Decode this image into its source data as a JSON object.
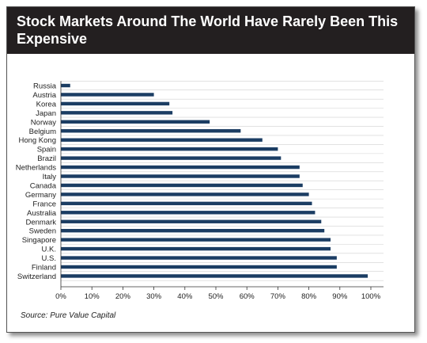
{
  "chart_data": {
    "type": "bar",
    "orientation": "horizontal",
    "title": "Stock Markets Around The World Have Rarely Been This Expensive",
    "categories": [
      "Russia",
      "Austria",
      "Korea",
      "Japan",
      "Norway",
      "Belgium",
      "Hong Kong",
      "Spain",
      "Brazil",
      "Netherlands",
      "Italy",
      "Canada",
      "Germany",
      "France",
      "Australia",
      "Denmark",
      "Sweden",
      "Singapore",
      "U.K.",
      "U.S.",
      "Finland",
      "Switzerland"
    ],
    "values": [
      3,
      30,
      35,
      36,
      48,
      58,
      65,
      70,
      71,
      77,
      77,
      78,
      80,
      81,
      82,
      84,
      85,
      87,
      87,
      89,
      89,
      99
    ],
    "xlim": [
      0,
      100
    ],
    "xticks": [
      "0%",
      "10%",
      "20%",
      "30%",
      "40%",
      "50%",
      "60%",
      "70%",
      "80%",
      "90%",
      "100%"
    ],
    "xlabel": "",
    "ylabel": "",
    "grid": true,
    "bar_color": "#1b3d63",
    "source": "Source: Pure Value Capital"
  }
}
